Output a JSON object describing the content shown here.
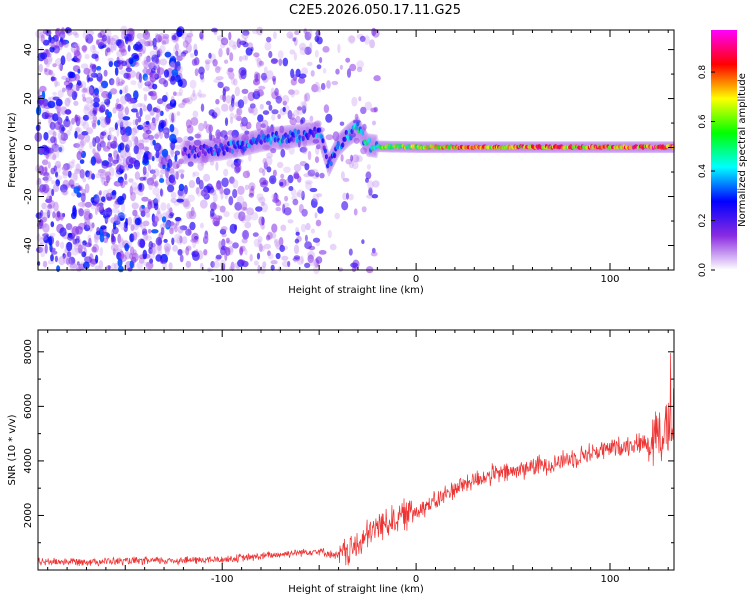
{
  "title": "C2E5.2026.050.17.11.G25",
  "chart_data": [
    {
      "type": "heatmap",
      "xlabel": "Height of straight line (km)",
      "ylabel": "Frequency (Hz)",
      "xlim": [
        -195,
        133
      ],
      "ylim": [
        -50,
        48
      ],
      "xticks": [
        -100,
        0,
        100
      ],
      "yticks": [
        -40,
        -20,
        0,
        20,
        40
      ],
      "grid": false,
      "colorbar": {
        "label": "Normalized spectral amplitude",
        "range": [
          0.0,
          0.97
        ],
        "ticks": [
          "0.0",
          "0.2",
          "0.4",
          "0.6",
          "0.8"
        ],
        "colors": [
          "#ffffff",
          "#8a2be2",
          "#0000ff",
          "#00ffff",
          "#00ff00",
          "#ffff00",
          "#ff0000",
          "#ff00ff"
        ]
      },
      "signal_trace": [
        {
          "x": -120,
          "freq": -2.0,
          "amp": 0.3
        },
        {
          "x": -110,
          "freq": -1.5,
          "amp": 0.35
        },
        {
          "x": -100,
          "freq": -0.5,
          "amp": 0.38
        },
        {
          "x": -90,
          "freq": 1.0,
          "amp": 0.42
        },
        {
          "x": -80,
          "freq": 3.0,
          "amp": 0.45
        },
        {
          "x": -70,
          "freq": 4.0,
          "amp": 0.45
        },
        {
          "x": -60,
          "freq": 5.0,
          "amp": 0.42
        },
        {
          "x": -50,
          "freq": 6.0,
          "amp": 0.4
        },
        {
          "x": -45,
          "freq": -7.0,
          "amp": 0.38
        },
        {
          "x": -40,
          "freq": 1.0,
          "amp": 0.45
        },
        {
          "x": -35,
          "freq": 5.0,
          "amp": 0.48
        },
        {
          "x": -30,
          "freq": 8.0,
          "amp": 0.5
        },
        {
          "x": -25,
          "freq": 1.0,
          "amp": 0.55
        },
        {
          "x": -20,
          "freq": 0.5,
          "amp": 0.6
        },
        {
          "x": -10,
          "freq": 0.3,
          "amp": 0.65
        },
        {
          "x": 0,
          "freq": 0.2,
          "amp": 0.7
        },
        {
          "x": 10,
          "freq": 0.2,
          "amp": 0.75
        },
        {
          "x": 20,
          "freq": 0.2,
          "amp": 0.8
        },
        {
          "x": 40,
          "freq": 0.2,
          "amp": 0.82
        },
        {
          "x": 60,
          "freq": 0.2,
          "amp": 0.88
        },
        {
          "x": 80,
          "freq": 0.2,
          "amp": 0.85
        },
        {
          "x": 100,
          "freq": 0.2,
          "amp": 0.85
        },
        {
          "x": 120,
          "freq": 0.2,
          "amp": 0.9
        },
        {
          "x": 133,
          "freq": 0.2,
          "amp": 0.92
        }
      ]
    },
    {
      "type": "line",
      "xlabel": "Height of straight line (km)",
      "ylabel": "SNR (10 * v/v)",
      "xlim": [
        -195,
        133
      ],
      "ylim": [
        0,
        8800
      ],
      "xticks": [
        -100,
        0,
        100
      ],
      "yticks": [
        2000,
        4000,
        6000,
        8000
      ],
      "grid": false,
      "line_color": "#ee3333",
      "envelope": [
        {
          "x": -195,
          "y": 300
        },
        {
          "x": -150,
          "y": 320
        },
        {
          "x": -100,
          "y": 380
        },
        {
          "x": -80,
          "y": 500
        },
        {
          "x": -60,
          "y": 650
        },
        {
          "x": -50,
          "y": 700
        },
        {
          "x": -40,
          "y": 500
        },
        {
          "x": -30,
          "y": 900
        },
        {
          "x": -20,
          "y": 1600
        },
        {
          "x": -10,
          "y": 1900
        },
        {
          "x": 0,
          "y": 2200
        },
        {
          "x": 10,
          "y": 2500
        },
        {
          "x": 20,
          "y": 3000
        },
        {
          "x": 30,
          "y": 3300
        },
        {
          "x": 40,
          "y": 3500
        },
        {
          "x": 50,
          "y": 3600
        },
        {
          "x": 60,
          "y": 3800
        },
        {
          "x": 70,
          "y": 3900
        },
        {
          "x": 80,
          "y": 4100
        },
        {
          "x": 90,
          "y": 4300
        },
        {
          "x": 100,
          "y": 4450
        },
        {
          "x": 110,
          "y": 4600
        },
        {
          "x": 120,
          "y": 4700
        },
        {
          "x": 125,
          "y": 5200
        },
        {
          "x": 130,
          "y": 5000
        },
        {
          "x": 133,
          "y": 6000
        }
      ]
    }
  ]
}
